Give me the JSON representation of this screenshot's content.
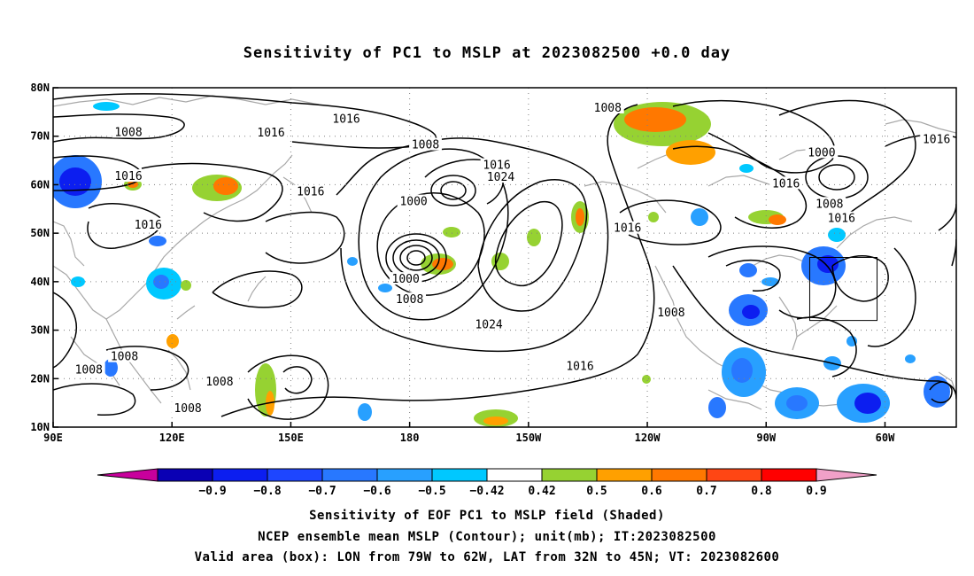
{
  "title": "Sensitivity of PC1 to MSLP at 2023082500 +0.0 day",
  "captions": {
    "line1": "Sensitivity of EOF PC1 to MSLP field (Shaded)",
    "line2": "NCEP ensemble mean MSLP (Contour); unit(mb); IT:2023082500",
    "line3": "Valid area (box): LON from 79W to 62W, LAT from 32N to 45N; VT: 2023082600"
  },
  "axes": {
    "x_ticks": [
      {
        "lon": 90,
        "label": "90E"
      },
      {
        "lon": 120,
        "label": "120E"
      },
      {
        "lon": 150,
        "label": "150E"
      },
      {
        "lon": 180,
        "label": "180"
      },
      {
        "lon": 210,
        "label": "150W"
      },
      {
        "lon": 240,
        "label": "120W"
      },
      {
        "lon": 270,
        "label": "90W"
      },
      {
        "lon": 300,
        "label": "60W"
      }
    ],
    "y_ticks": [
      {
        "lat": 10,
        "label": "10N"
      },
      {
        "lat": 20,
        "label": "20N"
      },
      {
        "lat": 30,
        "label": "30N"
      },
      {
        "lat": 40,
        "label": "40N"
      },
      {
        "lat": 50,
        "label": "50N"
      },
      {
        "lat": 60,
        "label": "60N"
      },
      {
        "lat": 70,
        "label": "70N"
      },
      {
        "lat": 80,
        "label": "80N"
      }
    ],
    "lon_range": [
      90,
      318
    ],
    "lat_range": [
      10,
      80
    ],
    "grid": true
  },
  "colorbar": {
    "colors": [
      "#0a00b4",
      "#0c1ef0",
      "#1e46ff",
      "#2878ff",
      "#28a0ff",
      "#00c8ff",
      "#ffffff",
      "#96d232",
      "#ffa000",
      "#ff7800",
      "#ff4614",
      "#ff0000"
    ],
    "under_color": "#c8009c",
    "over_color": "#f0a0c8",
    "labels": [
      "−0.9",
      "−0.8",
      "−0.7",
      "−0.6",
      "−0.5",
      "−0.42",
      "0.42",
      "0.5",
      "0.6",
      "0.7",
      "0.8",
      "0.9"
    ]
  },
  "valid_box": {
    "lon_min": 281,
    "lon_max": 298,
    "lat_min": 32,
    "lat_max": 45
  },
  "contour_labels": [
    {
      "text": "1016",
      "lon": 164,
      "lat": 73.5
    },
    {
      "text": "1016",
      "lon": 145,
      "lat": 70.7
    },
    {
      "text": "1008",
      "lon": 109,
      "lat": 70.8
    },
    {
      "text": "1016",
      "lon": 109,
      "lat": 61.7
    },
    {
      "text": "1016",
      "lon": 114,
      "lat": 51.7
    },
    {
      "text": "1016",
      "lon": 155,
      "lat": 58.5
    },
    {
      "text": "1008",
      "lon": 184,
      "lat": 68.2
    },
    {
      "text": "1000",
      "lon": 181,
      "lat": 56.5
    },
    {
      "text": "1016",
      "lon": 202,
      "lat": 64.0
    },
    {
      "text": "1024",
      "lon": 203,
      "lat": 61.5
    },
    {
      "text": "1000",
      "lon": 179,
      "lat": 40.5
    },
    {
      "text": "1008",
      "lon": 180,
      "lat": 36.3
    },
    {
      "text": "1024",
      "lon": 200,
      "lat": 31.1
    },
    {
      "text": "1008",
      "lon": 230,
      "lat": 75.8
    },
    {
      "text": "1016",
      "lon": 235,
      "lat": 51.0
    },
    {
      "text": "1008",
      "lon": 246,
      "lat": 33.6
    },
    {
      "text": "1016",
      "lon": 223,
      "lat": 22.5
    },
    {
      "text": "1016",
      "lon": 275,
      "lat": 60.2
    },
    {
      "text": "1000",
      "lon": 284,
      "lat": 66.6
    },
    {
      "text": "1008",
      "lon": 286,
      "lat": 56.0
    },
    {
      "text": "1016",
      "lon": 289,
      "lat": 53.0
    },
    {
      "text": "1016",
      "lon": 313,
      "lat": 69.3
    },
    {
      "text": "1008",
      "lon": 108,
      "lat": 24.5
    },
    {
      "text": "1008",
      "lon": 99,
      "lat": 21.8
    },
    {
      "text": "1008",
      "lon": 132,
      "lat": 19.3
    },
    {
      "text": "1008",
      "lon": 124,
      "lat": 13.8
    }
  ]
}
